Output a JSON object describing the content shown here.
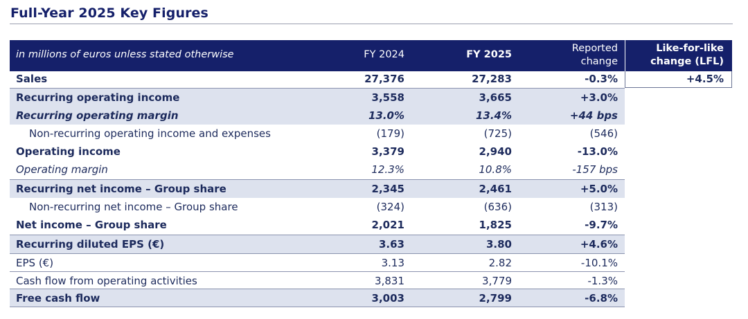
{
  "title": "Full-Year 2025 Key Figures",
  "header": {
    "unit_note": "in millions of euros unless stated otherwise",
    "col_fy2024": "FY 2024",
    "col_fy2025": "FY 2025",
    "col_reported_line1": "Reported",
    "col_reported_line2": "change",
    "col_lfl_line1": "Like-for-like",
    "col_lfl_line2": "change (LFL)"
  },
  "sales": {
    "label": "Sales",
    "fy2024": "27,376",
    "fy2025": "27,283",
    "reported": "-0.3%",
    "lfl": "+4.5%"
  },
  "rows": [
    {
      "label": "Recurring operating income",
      "fy2024": "3,558",
      "fy2025": "3,665",
      "reported": "+3.0%"
    },
    {
      "label": "Recurring operating margin",
      "fy2024": "13.0%",
      "fy2025": "13.4%",
      "reported": "+44 bps"
    },
    {
      "label": "Non-recurring operating income and expenses",
      "fy2024": "(179)",
      "fy2025": "(725)",
      "reported": "(546)"
    },
    {
      "label": "Operating income",
      "fy2024": "3,379",
      "fy2025": "2,940",
      "reported": "-13.0%"
    },
    {
      "label": "Operating margin",
      "fy2024": "12.3%",
      "fy2025": "10.8%",
      "reported": "-157 bps"
    },
    {
      "label": "Recurring net income – Group share",
      "fy2024": "2,345",
      "fy2025": "2,461",
      "reported": "+5.0%"
    },
    {
      "label": "Non-recurring net income – Group share",
      "fy2024": "(324)",
      "fy2025": "(636)",
      "reported": "(313)"
    },
    {
      "label": "Net income – Group share",
      "fy2024": "2,021",
      "fy2025": "1,825",
      "reported": "-9.7%"
    },
    {
      "label": "Recurring diluted EPS (€)",
      "fy2024": "3.63",
      "fy2025": "3.80",
      "reported": "+4.6%"
    },
    {
      "label": "EPS (€)",
      "fy2024": "3.13",
      "fy2025": "2.82",
      "reported": "-10.1%"
    },
    {
      "label": "Cash flow from operating activities",
      "fy2024": "3,831",
      "fy2025": "3,779",
      "reported": "-1.3%"
    },
    {
      "label": "Free cash flow",
      "fy2024": "3,003",
      "fy2025": "2,799",
      "reported": "-6.8%"
    }
  ],
  "colors": {
    "header_bg": "#15206a",
    "band_bg": "#dde2ee",
    "text": "#1c2a5c"
  }
}
